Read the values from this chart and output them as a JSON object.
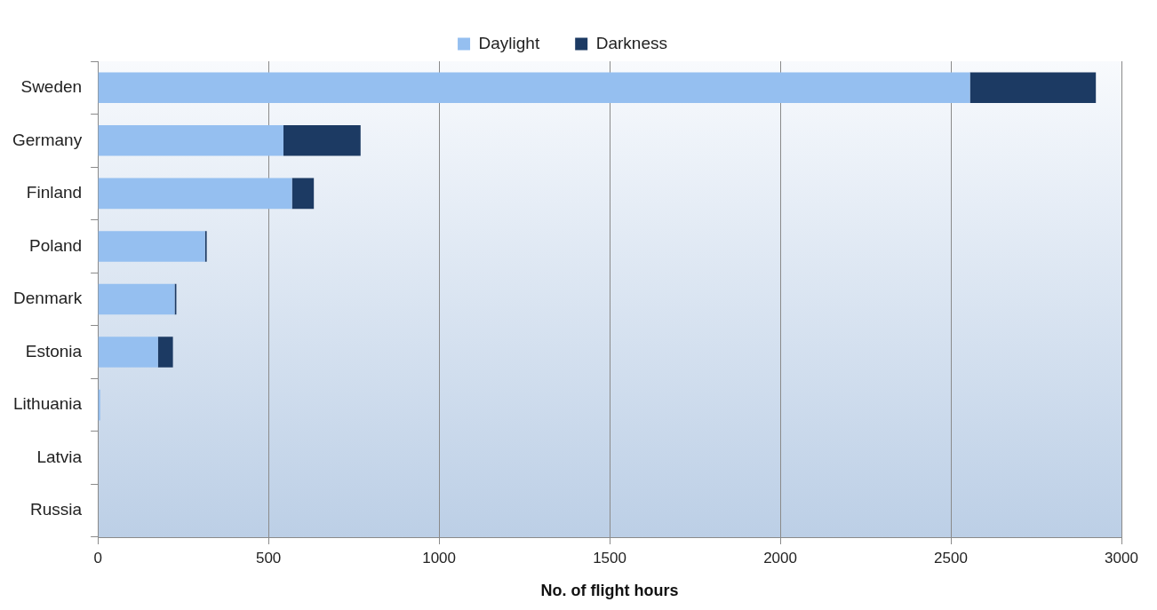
{
  "chart_data": {
    "type": "bar",
    "orientation": "horizontal",
    "stacked": true,
    "xlabel": "No. of flight hours",
    "categories": [
      "Sweden",
      "Germany",
      "Finland",
      "Poland",
      "Denmark",
      "Estonia",
      "Lithuania",
      "Latvia",
      "Russia"
    ],
    "series": [
      {
        "name": "Daylight",
        "color": "#95bff0",
        "values": [
          2556,
          544,
          569,
          314,
          225,
          176,
          7,
          0,
          0
        ]
      },
      {
        "name": "Darkness",
        "color": "#1c3a63",
        "values": [
          369,
          226,
          64,
          5,
          5,
          44,
          0,
          0,
          0
        ]
      }
    ],
    "xlim": [
      0,
      3000
    ],
    "xticks": [
      0,
      500,
      1000,
      1500,
      2000,
      2500,
      3000
    ],
    "grid": "x",
    "legend": "top"
  }
}
